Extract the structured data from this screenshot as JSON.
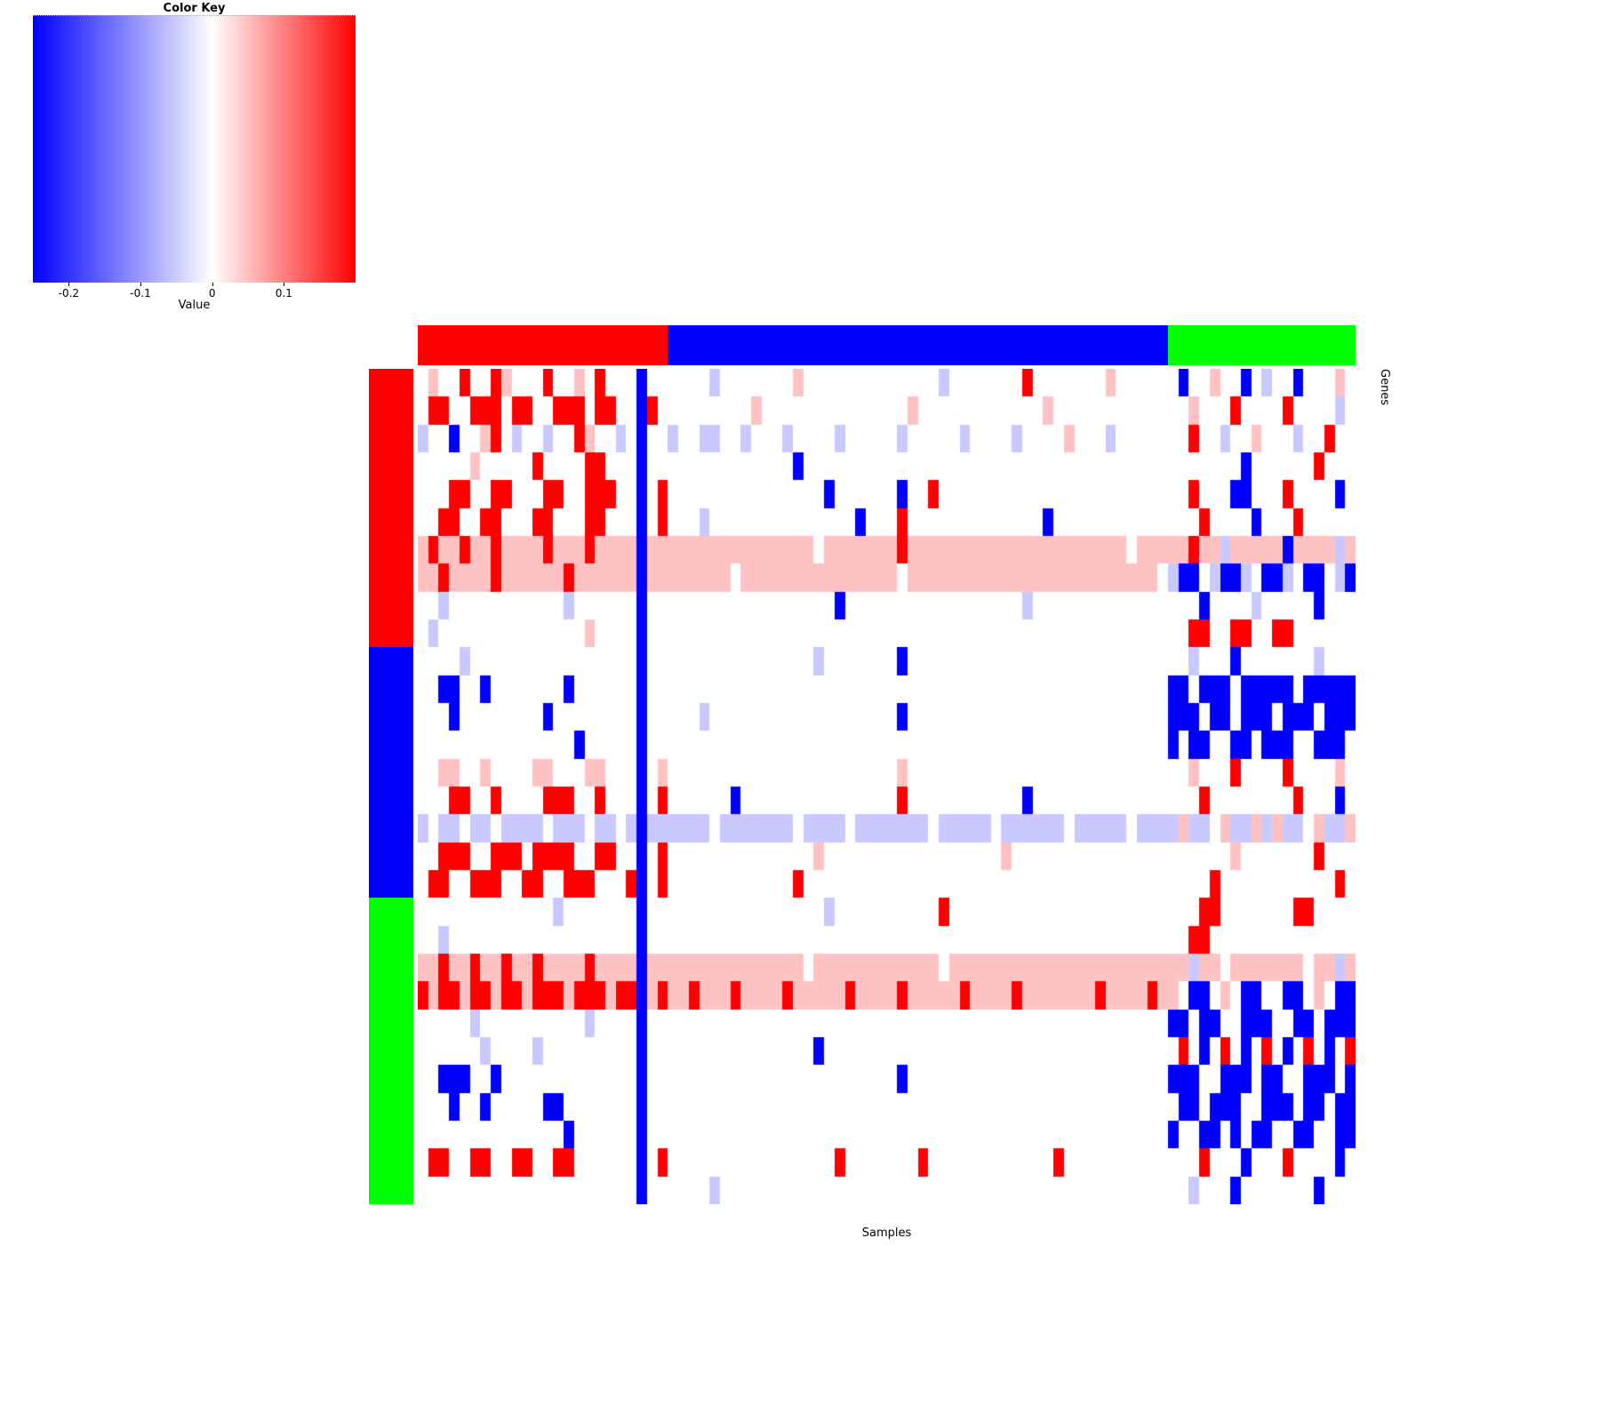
{
  "color_key": {
    "title": "Color Key",
    "xlabel": "Value",
    "min": -0.25,
    "max": 0.2,
    "ticks": [
      -0.2,
      -0.1,
      0,
      0.1
    ],
    "gradient": {
      "left_color": "#0000FF",
      "center_color": "#FFFFFF",
      "right_color": "#FF0000",
      "center_value": 0
    }
  },
  "axes": {
    "xlabel": "Samples",
    "ylabel": "Genes"
  },
  "chart_data": {
    "type": "heatmap",
    "title": "Color Key",
    "xlabel": "Samples",
    "ylabel": "Genes",
    "value_range": [
      -0.25,
      0.2
    ],
    "color_key_ticks": [
      -0.2,
      -0.1,
      0,
      0.1
    ],
    "n_rows": 30,
    "n_cols": 90,
    "legend_position": "top-left",
    "grid": false,
    "col_groups": [
      {
        "name": "red",
        "color": "#FF0000",
        "n_cols": 24
      },
      {
        "name": "blue",
        "color": "#0000FF",
        "n_cols": 48
      },
      {
        "name": "green",
        "color": "#00FF00",
        "n_cols": 18
      }
    ],
    "row_groups": [
      {
        "name": "red",
        "color": "#FF0000",
        "n_rows": 10
      },
      {
        "name": "blue",
        "color": "#0000FF",
        "n_rows": 9
      },
      {
        "name": "green",
        "color": "#00FF00",
        "n_rows": 11
      }
    ],
    "value_bins": {
      "B": {
        "value": -0.2,
        "color": "#0000FF"
      },
      "b": {
        "value": -0.05,
        "color": "#C9C9FF"
      },
      "w": {
        "value": 0,
        "color": "#FFFFFF"
      },
      "r": {
        "value": 0.05,
        "color": "#FFC2C2"
      },
      "R": {
        "value": 0.2,
        "color": "#FF0000"
      }
    },
    "rows": [
      [
        "wrwwRwwRrw",
        "wwRwwrwRww",
        "wBww",
        "wwwwbwwwww",
        "wwrwwwwwww",
        "wwwwwwbwww",
        "wwwwRwwwww",
        "wwrwwwww",
        "wBwwrwwBwb",
        "wwBwwwrw"
      ],
      [
        "wRRwwRRRwR",
        "RwwRRRwRRw",
        "wBRw",
        "wwwwwwwwrw",
        "wwwwwwwwww",
        "wwwrwwwwww",
        "wwwwwwrwww",
        "wwwwwwww",
        "wwrwwwRwww",
        "wRwwwwbw"
      ],
      [
        "bwwBwwrRwb",
        "wwbwwRrwwb",
        "wBww",
        "bwwbbwwbww",
        "wbwwwwbwww",
        "wwbwwwwwbw",
        "wwwbwwwwrw",
        "wwbwwwww",
        "wwRwwbwwrw",
        "wwbwwRww"
      ],
      [
        "wwwwwrwwww",
        "wRwwwwRRww",
        "wBww",
        "wwwwwwwwww",
        "wwBwwwwwww",
        "wwwwwwwwww",
        "wwwwwwwwww",
        "wwwwwwww",
        "wwwwwwwBww",
        "wwwwRwww"
      ],
      [
        "wwwRRwwRRw",
        "wwRRwwRRRw",
        "wBwR",
        "wwwwwwwwww",
        "wwwwwBwwww",
        "wwBwwRwwww",
        "wwwwwwwwww",
        "wwwwwwww",
        "wwRwwwBBww",
        "wRwwwwBw"
      ],
      [
        "wwRRwwRRww",
        "wRRwwwRRww",
        "wBwR",
        "wwwbwwwwww",
        "wwwwwwwwBw",
        "wwRwwwwwww",
        "wwwwwwBwww",
        "wwwwwwww",
        "wwwRwwwwBw",
        "wwRwwwww"
      ],
      [
        "rRrrRrrRrr",
        "rrRrrrRrrr",
        "rBrr",
        "rrrrrrrrrr",
        "rrrrwrrrrr",
        "rrRrrrrrrr",
        "rrrrrrrrrr",
        "rrrrwrrr",
        "rrRrrbrrrr",
        "rBrrrrbr"
      ],
      [
        "rrRrrrrRrr",
        "rrrrRrrrrr",
        "rBrr",
        "rrrrrrwrrr",
        "rrrrrrrrrr",
        "rrwrrrrrrr",
        "rrrrrrrrrr",
        "rrrrrrrw",
        "bBBwbBBbwB",
        "BbwBBwbB"
      ],
      [
        "wwbwwwwwww",
        "wwwwbwwwww",
        "wBww",
        "wwwwwwwwww",
        "wwwwwwBwww",
        "wwwwwwwwww",
        "wwwwbwwwww",
        "wwwwwwww",
        "wwwBwwwwbw",
        "wwwwBwww"
      ],
      [
        "wbwwwwwwww",
        "wwwwwwrwww",
        "wBww",
        "wwwwwwwwww",
        "wwwwwwwwww",
        "wwwwwwwwww",
        "wwwwwwwwww",
        "wwwwwwww",
        "wwRRwwRRww",
        "RRwwwwww"
      ],
      [
        "wwwwbwwwww",
        "wwwwwwwwww",
        "wBww",
        "wwwwwwwwww",
        "wwwwbwwwww",
        "wwBwwwwwww",
        "wwwwwwwwww",
        "wwwwwwww",
        "wwbwwwBwww",
        "wwwwbwww"
      ],
      [
        "wwBBwwBwww",
        "wwwwBwwwww",
        "wBww",
        "wwwwwwwwww",
        "wwwwwwwwww",
        "wwwwwwwwww",
        "wwwwwwwwww",
        "wwwwwwww",
        "BBwBBBwBBB",
        "BBwBBBBB"
      ],
      [
        "wwwBwwwwww",
        "wwBwwwwwww",
        "wBww",
        "wwwbwwwwww",
        "wwwwwwwwww",
        "wwBwwwwwww",
        "wwwwwwwwww",
        "wwwwwwww",
        "BBBwBBwBBB",
        "wBBBwBBB"
      ],
      [
        "wwwwwwwwww",
        "wwwwwBwwww",
        "wBww",
        "wwwwwwwwww",
        "wwwwwwwwww",
        "wwwwwwwwww",
        "wwwwwwwwww",
        "wwwwwwww",
        "BwBBwwBBwB",
        "BBwwBBBw"
      ],
      [
        "wwrrwwrwww",
        "wrrwwwrrww",
        "wBwr",
        "wwwwwwwwww",
        "wwwwwwwwww",
        "wwrwwwwwww",
        "wwwwwwwwww",
        "wwwwwwww",
        "wwrwwwRwww",
        "wRwwwwrw"
      ],
      [
        "wwwRRwwRww",
        "wwRRRwwRww",
        "wBwR",
        "wwwwwwBwww",
        "wwwwwwwwww",
        "wwRwwwwwww",
        "wwwwBwwwww",
        "wwwwwwww",
        "wwwRwwwwww",
        "wwRwwwBw"
      ],
      [
        "bwbbwbbwbb",
        "bbwbbbwbbw",
        "bBbb",
        "bbbbwbbbbb",
        "bbwbbbbwbb",
        "bbbbbwbbbb",
        "bwbbbbbbwb",
        "bbbbwbbb",
        "brbbwrbbrb",
        "rbbwrbbr"
      ],
      [
        "wwRRRwwRRR",
        "wRRRRwwRRw",
        "wBwR",
        "wwwwwwwwww",
        "wwwwrwwwww",
        "wwwwwwwwww",
        "wwrwwwwwww",
        "wwwwwwww",
        "wwwwwwrwww",
        "wwwwRwww"
      ],
      [
        "wRRwwRRRww",
        "RRwwRRRwww",
        "RBwR",
        "wwwwwwwwww",
        "wwRwwwwwww",
        "wwwwwwwwww",
        "wwwwwwwwww",
        "wwwwwwww",
        "wwwwRwwwww",
        "wwwwwwRw"
      ],
      [
        "wwwwwwwwww",
        "wwwbwwwwww",
        "wBww",
        "wwwwwwwwww",
        "wwwwwbwwww",
        "wwwwwwRwww",
        "wwwwwwwwww",
        "wwwwwwww",
        "wwwRRwwwww",
        "wwRRwwww"
      ],
      [
        "wwbwwwwwww",
        "wwwwwwwwww",
        "wBww",
        "wwwwwwwwww",
        "wwwwwwwwww",
        "wwwwwwwwww",
        "wwwwwwwwww",
        "wwwwwwww",
        "wwRRwwwwww",
        "wwwwwwww"
      ],
      [
        "rrRrrRrrRr",
        "rRrrrrRrrr",
        "rBrr",
        "rrrrrrrrrr",
        "rrrwrrrrrr",
        "rrrrrrwrrr",
        "rrrrrrrrrr",
        "rrrrrrrr",
        "rrbrrwrrrr",
        "rrrwrrbr"
      ],
      [
        "RrRRrRRrRR",
        "rRRRrRRRrR",
        "RBrR",
        "rrRrrrRrrr",
        "rRrrrrrRrr",
        "rrRrrrrrRr",
        "rrrRrrrrrr",
        "rRrrrrRr",
        "rwBBwrwBBw",
        "wBBwrwBB"
      ],
      [
        "wwwwwbwwww",
        "wwwwwwbwww",
        "wBww",
        "wwwwwwwwww",
        "wwwwwwwwww",
        "wwwwwwwwww",
        "wwwwwwwwww",
        "wwwwwwww",
        "BBwBBwwBBB",
        "wwBBwBBB"
      ],
      [
        "wwwwwwbwww",
        "wbwwwwwwww",
        "wBww",
        "wwwwwwwwww",
        "wwwwBwwwww",
        "wwwwwwwwww",
        "wwwwwwwwww",
        "wwwwwwww",
        "wRwBwRwBwR",
        "wBwRwBwR"
      ],
      [
        "wwBBBwwBww",
        "wwwwwwwwww",
        "wBww",
        "wwwwwwwwww",
        "wwwwwwwwww",
        "wwBwwwwwww",
        "wwwwwwwwww",
        "wwwwwwww",
        "BBBwwBBBwB",
        "BwwBBBwB"
      ],
      [
        "wwwBwwBwww",
        "wwBBwwwwww",
        "wBww",
        "wwwwwwwwww",
        "wwwwwwwwww",
        "wwwwwwwwww",
        "wwwwwwwwww",
        "wwwwwwww",
        "wBBwBBBwwB",
        "BBwBBwBB"
      ],
      [
        "wwwwwwwwww",
        "wwwwBwwwww",
        "wBww",
        "wwwwwwwwww",
        "wwwwwwwwww",
        "wwwwwwwwww",
        "wwwwwwwwww",
        "wwwwwwww",
        "BwwBBwBwBB",
        "wwBBwwBB"
      ],
      [
        "wRRwwRRwwR",
        "RwwRRwwwww",
        "wBwR",
        "wwwwwwwwww",
        "wwwwwwRwww",
        "wwwwRwwwww",
        "wwwwwwwRww",
        "wwwwwwww",
        "wwwRwwwBww",
        "wRwwwwBw"
      ],
      [
        "wwwwwwwwww",
        "wwwwwwwwww",
        "wBww",
        "wwwwbwwwww",
        "wwwwwwwwww",
        "wwwwwwwwww",
        "wwwwwwwwww",
        "wwwwwwww",
        "wwbwwwBwww",
        "wwwwBwww"
      ]
    ]
  }
}
